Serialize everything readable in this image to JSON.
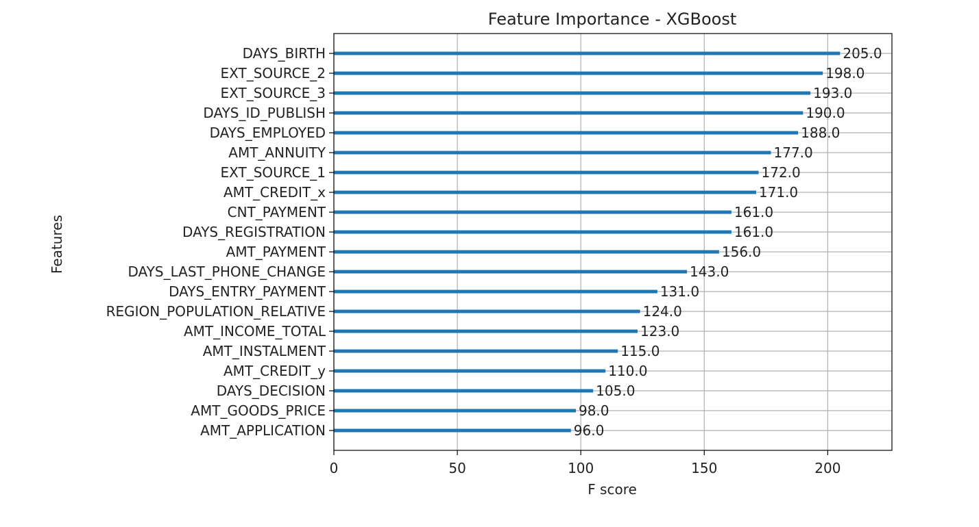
{
  "chart_data": {
    "type": "bar",
    "orientation": "horizontal",
    "title": "Feature Importance - XGBoost",
    "xlabel": "F score",
    "ylabel": "Features",
    "xlim": [
      0,
      226
    ],
    "xticks": [
      0,
      50,
      100,
      150,
      200
    ],
    "grid": true,
    "categories": [
      "DAYS_BIRTH",
      "EXT_SOURCE_2",
      "EXT_SOURCE_3",
      "DAYS_ID_PUBLISH",
      "DAYS_EMPLOYED",
      "AMT_ANNUITY",
      "EXT_SOURCE_1",
      "AMT_CREDIT_x",
      "CNT_PAYMENT",
      "DAYS_REGISTRATION",
      "AMT_PAYMENT",
      "DAYS_LAST_PHONE_CHANGE",
      "DAYS_ENTRY_PAYMENT",
      "REGION_POPULATION_RELATIVE",
      "AMT_INCOME_TOTAL",
      "AMT_INSTALMENT",
      "AMT_CREDIT_y",
      "DAYS_DECISION",
      "AMT_GOODS_PRICE",
      "AMT_APPLICATION"
    ],
    "values": [
      205,
      198,
      193,
      190,
      188,
      177,
      172,
      171,
      161,
      161,
      156,
      143,
      131,
      124,
      123,
      115,
      110,
      105,
      98,
      96
    ],
    "value_labels": [
      "205.0",
      "198.0",
      "193.0",
      "190.0",
      "188.0",
      "177.0",
      "172.0",
      "171.0",
      "161.0",
      "161.0",
      "156.0",
      "143.0",
      "131.0",
      "124.0",
      "123.0",
      "115.0",
      "110.0",
      "105.0",
      "98.0",
      "96.0"
    ],
    "bar_color": "#1f77b4",
    "grid_color": "#b0b0b0"
  }
}
